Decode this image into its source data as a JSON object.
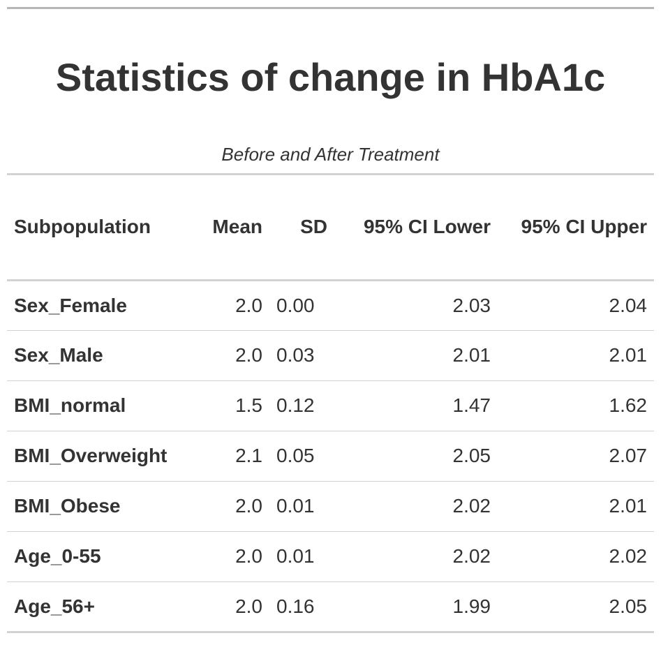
{
  "chart_data": {
    "type": "table",
    "title": "Statistics of change in HbA1c",
    "subtitle": "Before and After Treatment",
    "columns": [
      "Subpopulation",
      "Mean",
      "SD",
      "95% CI Lower",
      "95% CI Upper"
    ],
    "rows": [
      [
        "Sex_Female",
        "2.0",
        "0.00",
        "2.03",
        "2.04"
      ],
      [
        "Sex_Male",
        "2.0",
        "0.03",
        "2.01",
        "2.01"
      ],
      [
        "BMI_normal",
        "1.5",
        "0.12",
        "1.47",
        "1.62"
      ],
      [
        "BMI_Overweight",
        "2.1",
        "0.05",
        "2.05",
        "2.07"
      ],
      [
        "BMI_Obese",
        "2.0",
        "0.01",
        "2.02",
        "2.01"
      ],
      [
        "Age_0-55",
        "2.0",
        "0.01",
        "2.02",
        "2.02"
      ],
      [
        "Age_56+",
        "2.0",
        "0.16",
        "1.99",
        "2.05"
      ]
    ]
  }
}
